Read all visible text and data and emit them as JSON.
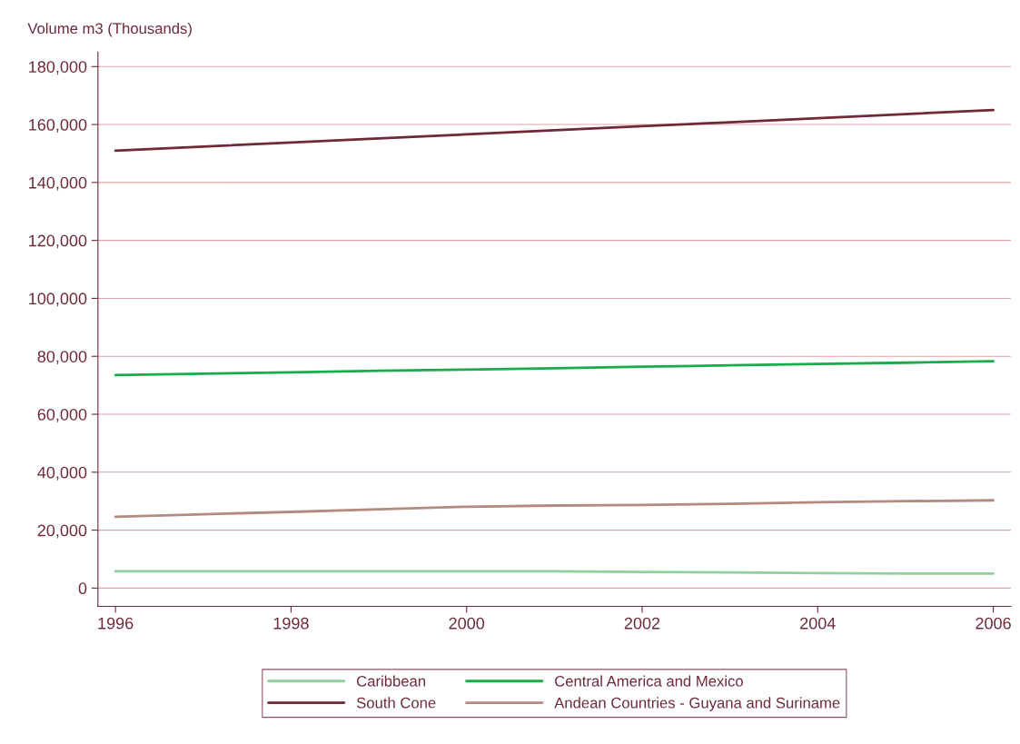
{
  "chart_data": {
    "type": "line",
    "ylabel": "Volume m3 (Thousands)",
    "x": [
      1996,
      1997,
      1998,
      1999,
      2000,
      2001,
      2002,
      2003,
      2004,
      2005,
      2006
    ],
    "series": [
      {
        "name": "Caribbean",
        "color": "#8fd19e",
        "values": [
          5800,
          5800,
          5800,
          5800,
          5800,
          5800,
          5600,
          5400,
          5200,
          5000,
          5000
        ]
      },
      {
        "name": "Central America and Mexico",
        "color": "#1aab4a",
        "values": [
          73500,
          74000,
          74500,
          75000,
          75400,
          75900,
          76400,
          76900,
          77400,
          77800,
          78300
        ]
      },
      {
        "name": "South Cone",
        "color": "#6e2a36",
        "values": [
          151000,
          152400,
          153800,
          155200,
          156600,
          158000,
          159400,
          160800,
          162200,
          163600,
          165000
        ]
      },
      {
        "name": "Andean Countries - Guyana and Suriname",
        "color": "#b38b80",
        "values": [
          24600,
          25500,
          26300,
          27200,
          28100,
          28500,
          28700,
          29100,
          29600,
          30000,
          30300
        ]
      }
    ],
    "xlim": [
      1995.8,
      2006.2
    ],
    "xticks": [
      1996,
      1998,
      2000,
      2002,
      2004,
      2006
    ],
    "ylim": [
      -6300,
      185000
    ],
    "yticks": [
      {
        "value": 0,
        "label": "0"
      },
      {
        "value": 20000,
        "label": "20,000"
      },
      {
        "value": 40000,
        "label": "40,000"
      },
      {
        "value": 60000,
        "label": "60,000"
      },
      {
        "value": 80000,
        "label": "80,000"
      },
      {
        "value": 100000,
        "label": "100,000"
      },
      {
        "value": 120000,
        "label": "120,000"
      },
      {
        "value": 140000,
        "label": "140,000"
      },
      {
        "value": 160000,
        "label": "160,000"
      },
      {
        "value": 180000,
        "label": "180,000"
      }
    ],
    "grid": "y",
    "legend": "bottom",
    "marker": "none",
    "line_style": "solid"
  }
}
